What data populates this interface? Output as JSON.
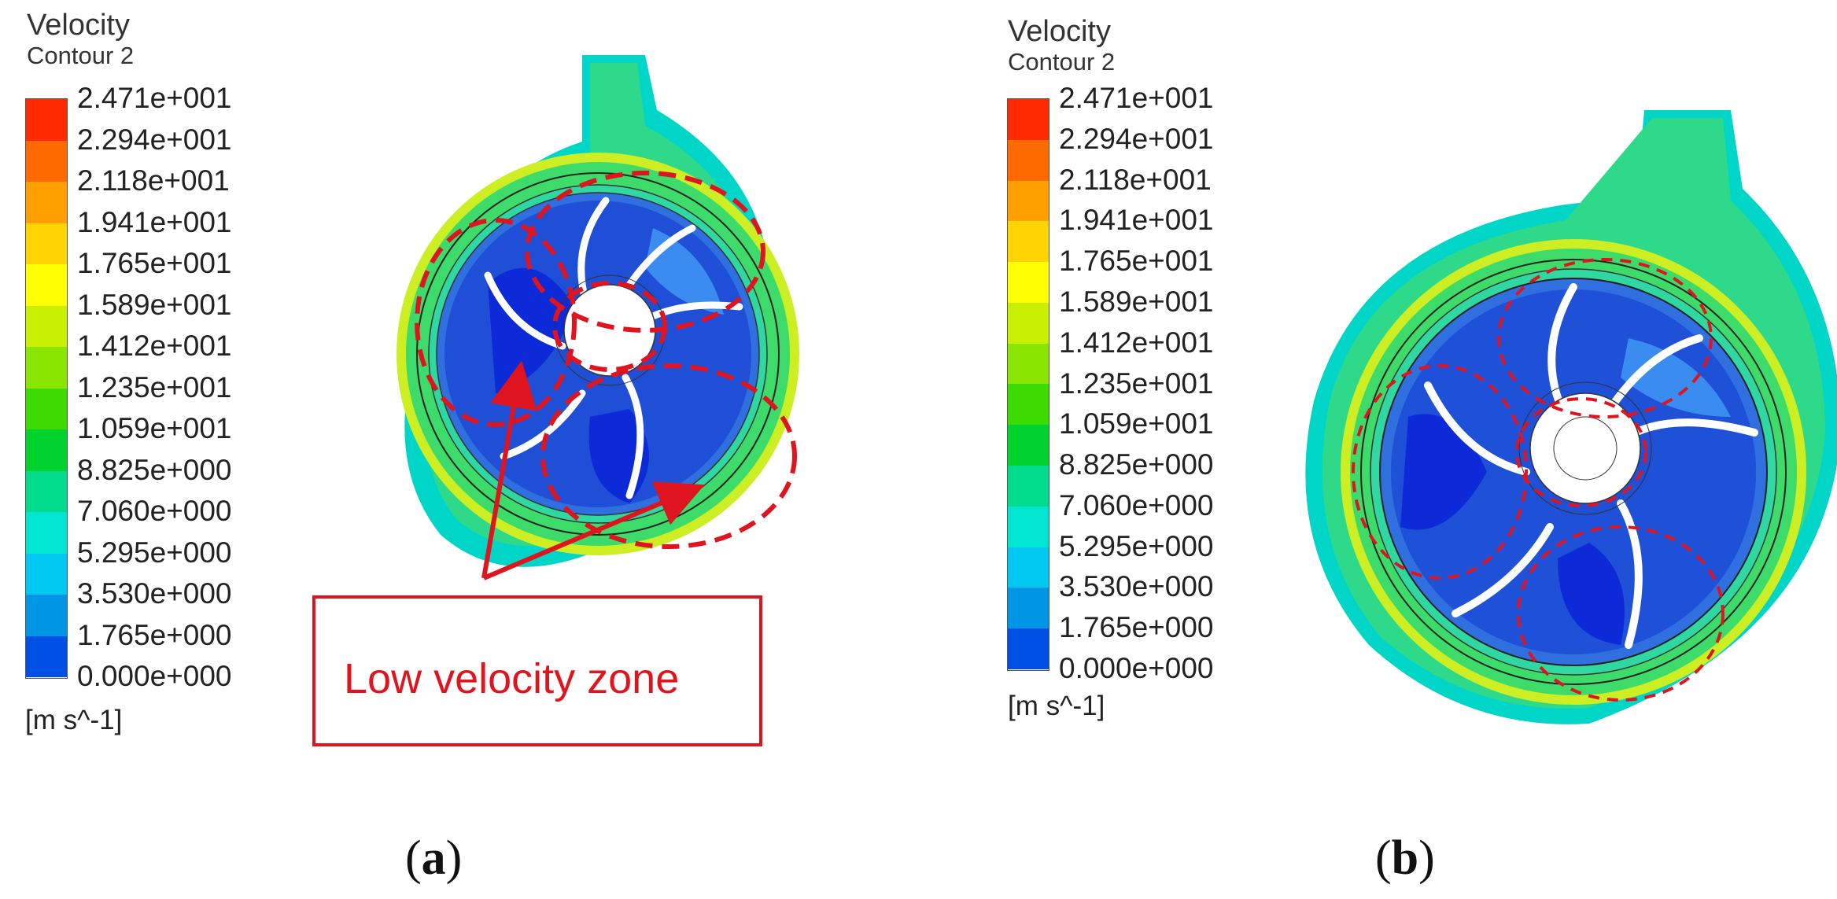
{
  "panels": [
    {
      "id": "a",
      "legend_title": "Velocity",
      "legend_subtitle": "Contour 2",
      "unit": "[m s^-1]",
      "caption_letter": "a",
      "annotation": "Low velocity zone"
    },
    {
      "id": "b",
      "legend_title": "Velocity",
      "legend_subtitle": "Contour 2",
      "unit": "[m s^-1]",
      "caption_letter": "b"
    }
  ],
  "colorbar_ticks": [
    "2.471e+001",
    "2.294e+001",
    "2.118e+001",
    "1.941e+001",
    "1.765e+001",
    "1.589e+001",
    "1.412e+001",
    "1.235e+001",
    "1.059e+001",
    "8.825e+000",
    "7.060e+000",
    "5.295e+000",
    "3.530e+000",
    "1.765e+000",
    "0.000e+000"
  ],
  "colorbar_colors": [
    "#ff2a00",
    "#ff6a00",
    "#ffa000",
    "#ffd400",
    "#ffff00",
    "#c8f000",
    "#8ae600",
    "#3cdc00",
    "#00d22e",
    "#00dc8c",
    "#00e6d2",
    "#00c8f0",
    "#0096e6",
    "#0050e6",
    "#0a14f0"
  ],
  "colors": {
    "annotation_red": "#e0141e",
    "volute_green": "#3ddc7a",
    "impeller_blue": "#2f6fe0"
  }
}
